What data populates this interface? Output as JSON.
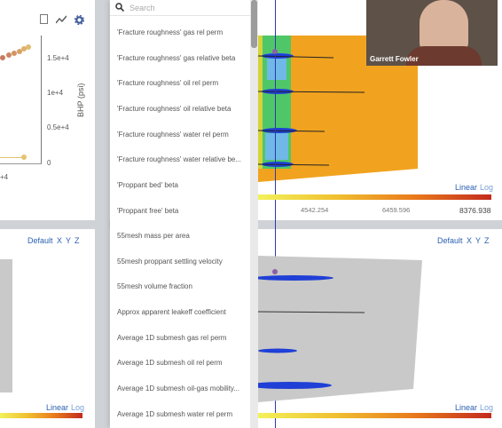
{
  "left_chart": {
    "yaxis_label": "BHP (psi)",
    "ytick_labels": [
      "1.5e+4",
      "1e+4",
      "0.5e+4",
      "0"
    ],
    "xtick_partial": "+4"
  },
  "toolbar_icons": [
    "document-icon",
    "chart-line-icon",
    "gear-icon"
  ],
  "top_viewport": {
    "scale_mode_linear": "Linear",
    "scale_mode_log": "Log",
    "color_scale_values": [
      "4542.254",
      "6459.596",
      "8376.938"
    ]
  },
  "bottom_left_viewport": {
    "view_options": [
      "Default",
      "X",
      "Y",
      "Z"
    ],
    "scale_mode_linear": "Linear",
    "scale_mode_log": "Log"
  },
  "bottom_right_viewport": {
    "view_options": [
      "Default",
      "X",
      "Y",
      "Z"
    ],
    "scale_mode_linear": "Linear",
    "scale_mode_log": "Log"
  },
  "property_dropdown": {
    "search_placeholder": "Search",
    "items": [
      "'Fracture roughness' gas rel perm",
      "'Fracture roughness' gas relative beta",
      "'Fracture roughness' oil rel perm",
      "'Fracture roughness' oil relative beta",
      "'Fracture roughness' water rel perm",
      "'Fracture roughness' water relative be...",
      "'Proppant bed' beta",
      "'Proppant free' beta",
      "55mesh mass per area",
      "55mesh proppant settling velocity",
      "55mesh volume fraction",
      "Approx apparent leakeff coefficient",
      "Average 1D submesh gas rel perm",
      "Average 1D submesh oil rel perm",
      "Average 1D submesh oil-gas mobility...",
      "Average 1D submesh water rel perm"
    ]
  },
  "video_call": {
    "participant_name": "Garrett Fowler"
  },
  "colors": {
    "accent_link": "#2b5fb3",
    "color_scale": [
      "#f2f25a",
      "#f0c030",
      "#e97a1c",
      "#c22b1e"
    ],
    "plume_orange": "#f1a31f",
    "plume_green": "#4fc768",
    "fracture_blue": "#1f3fd6"
  }
}
